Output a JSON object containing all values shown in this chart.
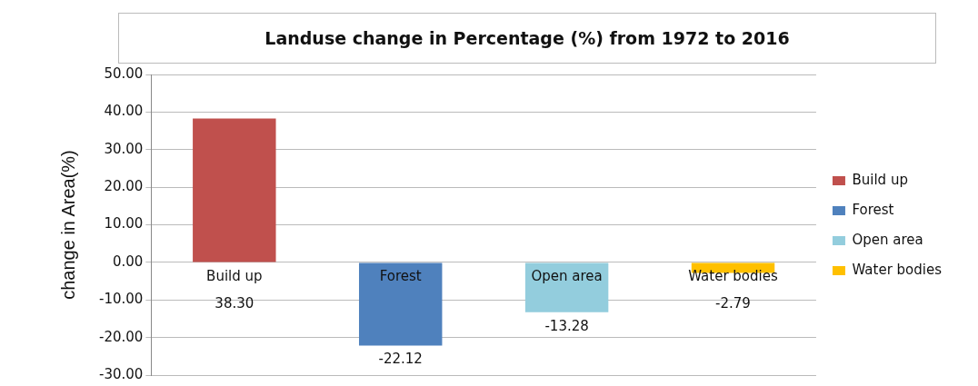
{
  "chart_data": {
    "type": "bar",
    "title": "Landuse change in Percentage (%) from 1972 to 2016",
    "ylabel": "change in Area(%)",
    "categories": [
      "Build up",
      "Forest",
      "Open area",
      "Water bodies"
    ],
    "series": [
      {
        "name": "Build up",
        "color": "#c0504d",
        "values": [
          38.3,
          null,
          null,
          null
        ],
        "value_labels": [
          "38.30",
          null,
          null,
          null
        ]
      },
      {
        "name": "Forest",
        "color": "#4f81bd",
        "values": [
          null,
          -22.12,
          null,
          null
        ],
        "value_labels": [
          null,
          "-22.12",
          null,
          null
        ]
      },
      {
        "name": "Open area",
        "color": "#93cddd",
        "values": [
          null,
          null,
          -13.28,
          null
        ],
        "value_labels": [
          null,
          null,
          "-13.28",
          null
        ]
      },
      {
        "name": "Water bodies",
        "color": "#ffc000",
        "values": [
          null,
          null,
          null,
          -2.79
        ],
        "value_labels": [
          null,
          null,
          null,
          "-2.79"
        ]
      }
    ],
    "ylim": [
      -30,
      50
    ],
    "yticks": [
      {
        "value": -30,
        "label": "-30.00"
      },
      {
        "value": -20,
        "label": "-20.00"
      },
      {
        "value": -10,
        "label": "-10.00"
      },
      {
        "value": 0,
        "label": "0.00"
      },
      {
        "value": 10,
        "label": "10.00"
      },
      {
        "value": 20,
        "label": "20.00"
      },
      {
        "value": 30,
        "label": "30.00"
      },
      {
        "value": 40,
        "label": "40.00"
      },
      {
        "value": 50,
        "label": "50.00"
      }
    ],
    "grid": "y",
    "legend": "right"
  }
}
